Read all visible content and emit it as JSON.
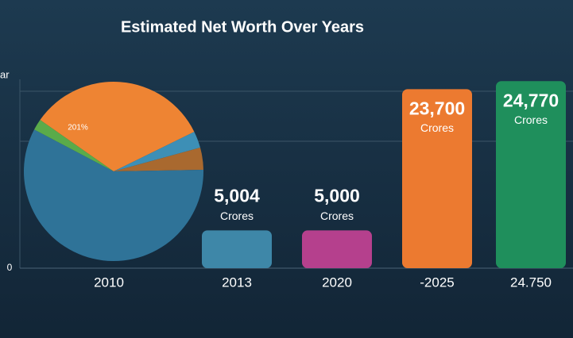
{
  "chart_data": [
    {
      "type": "pie",
      "values": [
        33,
        3,
        4,
        58,
        2
      ],
      "colors": [
        "#ee8433",
        "#3d8fb6",
        "#a9692f",
        "#2f7398",
        "#5aab4a"
      ],
      "annotation": "201%"
    },
    {
      "type": "bar",
      "title": "Estimated Net Worth Over Years",
      "y_label": "ar",
      "categories": [
        "2010",
        "2013",
        "2020",
        "-2025",
        "24.750"
      ],
      "values": [
        null,
        5004,
        5000,
        23700,
        24770
      ],
      "value_labels": [
        null,
        "5,004",
        "5,000",
        "23,700",
        "24,770"
      ],
      "value_unit": "Crores",
      "colors": [
        "#3e87a8",
        "#3e87a8",
        "#b5408d",
        "#ec7a30",
        "#1f8f5c"
      ],
      "ylim": [
        0,
        25000
      ],
      "yticks": [
        0
      ]
    }
  ]
}
